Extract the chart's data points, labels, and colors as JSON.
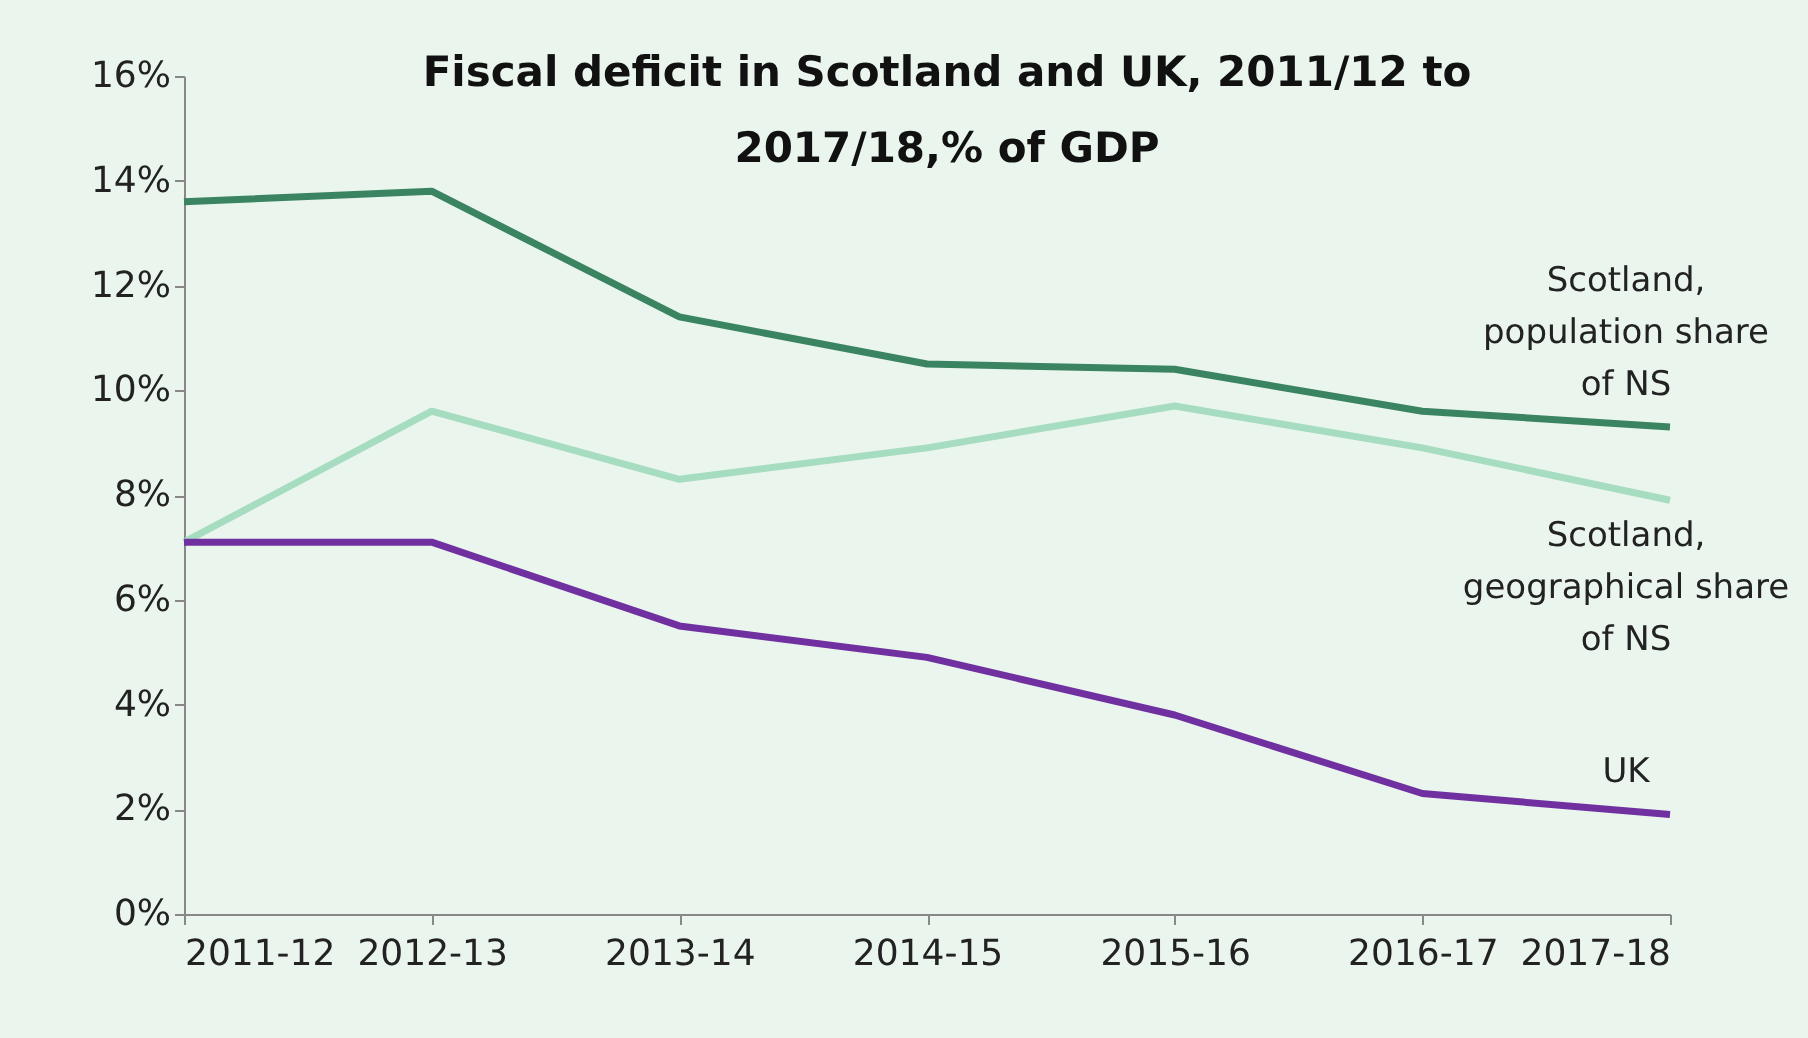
{
  "chart_data": {
    "type": "line",
    "title": "Fiscal deficit in Scotland and UK, 2011/12 to 2017/18,% of GDP",
    "categories": [
      "2011-12",
      "2012-13",
      "2013-14",
      "2014-15",
      "2015-16",
      "2016-17",
      "2017-18"
    ],
    "series": [
      {
        "name": "Scotland, population share of NS",
        "color": "#3b8462",
        "values": [
          13.6,
          13.8,
          11.4,
          10.5,
          10.4,
          9.6,
          9.3
        ]
      },
      {
        "name": "Scotland, geographical share of NS",
        "color": "#a6dcc0",
        "values": [
          7.1,
          9.6,
          8.3,
          8.9,
          9.7,
          8.9,
          7.9
        ]
      },
      {
        "name": "UK",
        "color": "#7030a0",
        "values": [
          7.1,
          7.1,
          5.5,
          4.9,
          3.8,
          2.3,
          1.9
        ]
      }
    ],
    "ylim": [
      0,
      16
    ],
    "yticks": [
      {
        "value": 0,
        "label": "0%"
      },
      {
        "value": 2,
        "label": "2%"
      },
      {
        "value": 4,
        "label": "4%"
      },
      {
        "value": 6,
        "label": "6%"
      },
      {
        "value": 8,
        "label": "8%"
      },
      {
        "value": 10,
        "label": "10%"
      },
      {
        "value": 12,
        "label": "12%"
      },
      {
        "value": 14,
        "label": "14%"
      },
      {
        "value": 16,
        "label": "16%"
      }
    ],
    "grid": false,
    "marker": "none",
    "line_style": "solid"
  }
}
